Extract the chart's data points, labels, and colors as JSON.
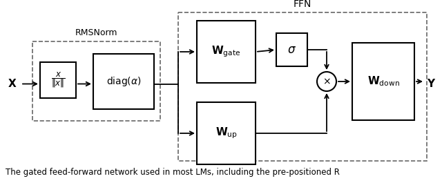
{
  "bg_color": "#ffffff",
  "box_color": "#000000",
  "dashed_color": "#666666",
  "arrow_color": "#000000",
  "text_color": "#000000",
  "caption": "The gated feed-forward network used in most LMs, including the pre-positioned R",
  "figsize": [
    6.4,
    2.65
  ],
  "dpi": 100,
  "ffn_label": "FFN",
  "rmsnorm_label": "RMSNorm",
  "norm_label": "\\frac{x}{\\|x\\|}",
  "diag_label": "\\mathrm{diag}(\\alpha)",
  "wgate_label": "\\mathbf{W}_{\\mathrm{gate}}",
  "sigma_label": "\\sigma",
  "wup_label": "\\mathbf{W}_{\\mathrm{up}}",
  "wdown_label": "\\mathbf{W}_{\\mathrm{down}}",
  "x_label": "\\mathbf{X}",
  "y_label": "\\mathbf{Y}"
}
